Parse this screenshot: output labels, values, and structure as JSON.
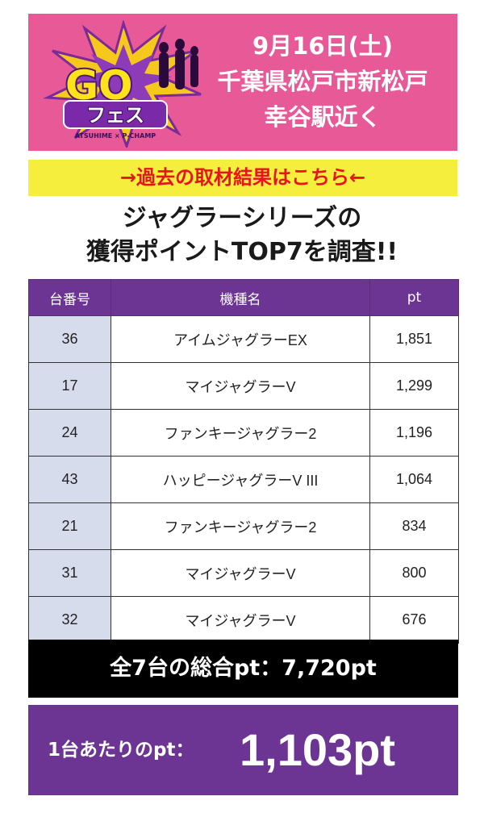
{
  "header": {
    "logo_text_main": "GO",
    "logo_text_sub": "フェス",
    "logo_caption": "ATSUHIME × P-CHAMP",
    "date": "9月16日(土)",
    "location_line1": "千葉県松戸市新松戸",
    "location_line2": "幸谷駅近く"
  },
  "past_results_link": "→過去の取材結果はこちら←",
  "headline": {
    "line1": "ジャグラーシリーズの",
    "line2": "獲得ポイントTOP7を調査!!"
  },
  "table": {
    "columns": [
      "台番号",
      "機種名",
      "pt"
    ],
    "rows": [
      {
        "num": "36",
        "machine": "アイムジャグラーEX",
        "pt": "1,851"
      },
      {
        "num": "17",
        "machine": "マイジャグラーV",
        "pt": "1,299"
      },
      {
        "num": "24",
        "machine": "ファンキージャグラー2",
        "pt": "1,196"
      },
      {
        "num": "43",
        "machine": "ハッピージャグラーV III",
        "pt": "1,064"
      },
      {
        "num": "21",
        "machine": "ファンキージャグラー2",
        "pt": "834"
      },
      {
        "num": "31",
        "machine": "マイジャグラーV",
        "pt": "800"
      },
      {
        "num": "32",
        "machine": "マイジャグラーV",
        "pt": "676"
      }
    ]
  },
  "summary": {
    "total_label": "全7台の総合pt：7,720pt",
    "avg_label": "1台あたりのpt：",
    "avg_value": "1,103pt"
  },
  "colors": {
    "header_bg": "#e85a97",
    "link_bg": "#f5ee3d",
    "link_text": "#e8141c",
    "table_header_bg": "#6c3493",
    "num_cell_bg": "#d7dcec",
    "total_bg": "#000000",
    "avg_bg": "#6c3493"
  }
}
